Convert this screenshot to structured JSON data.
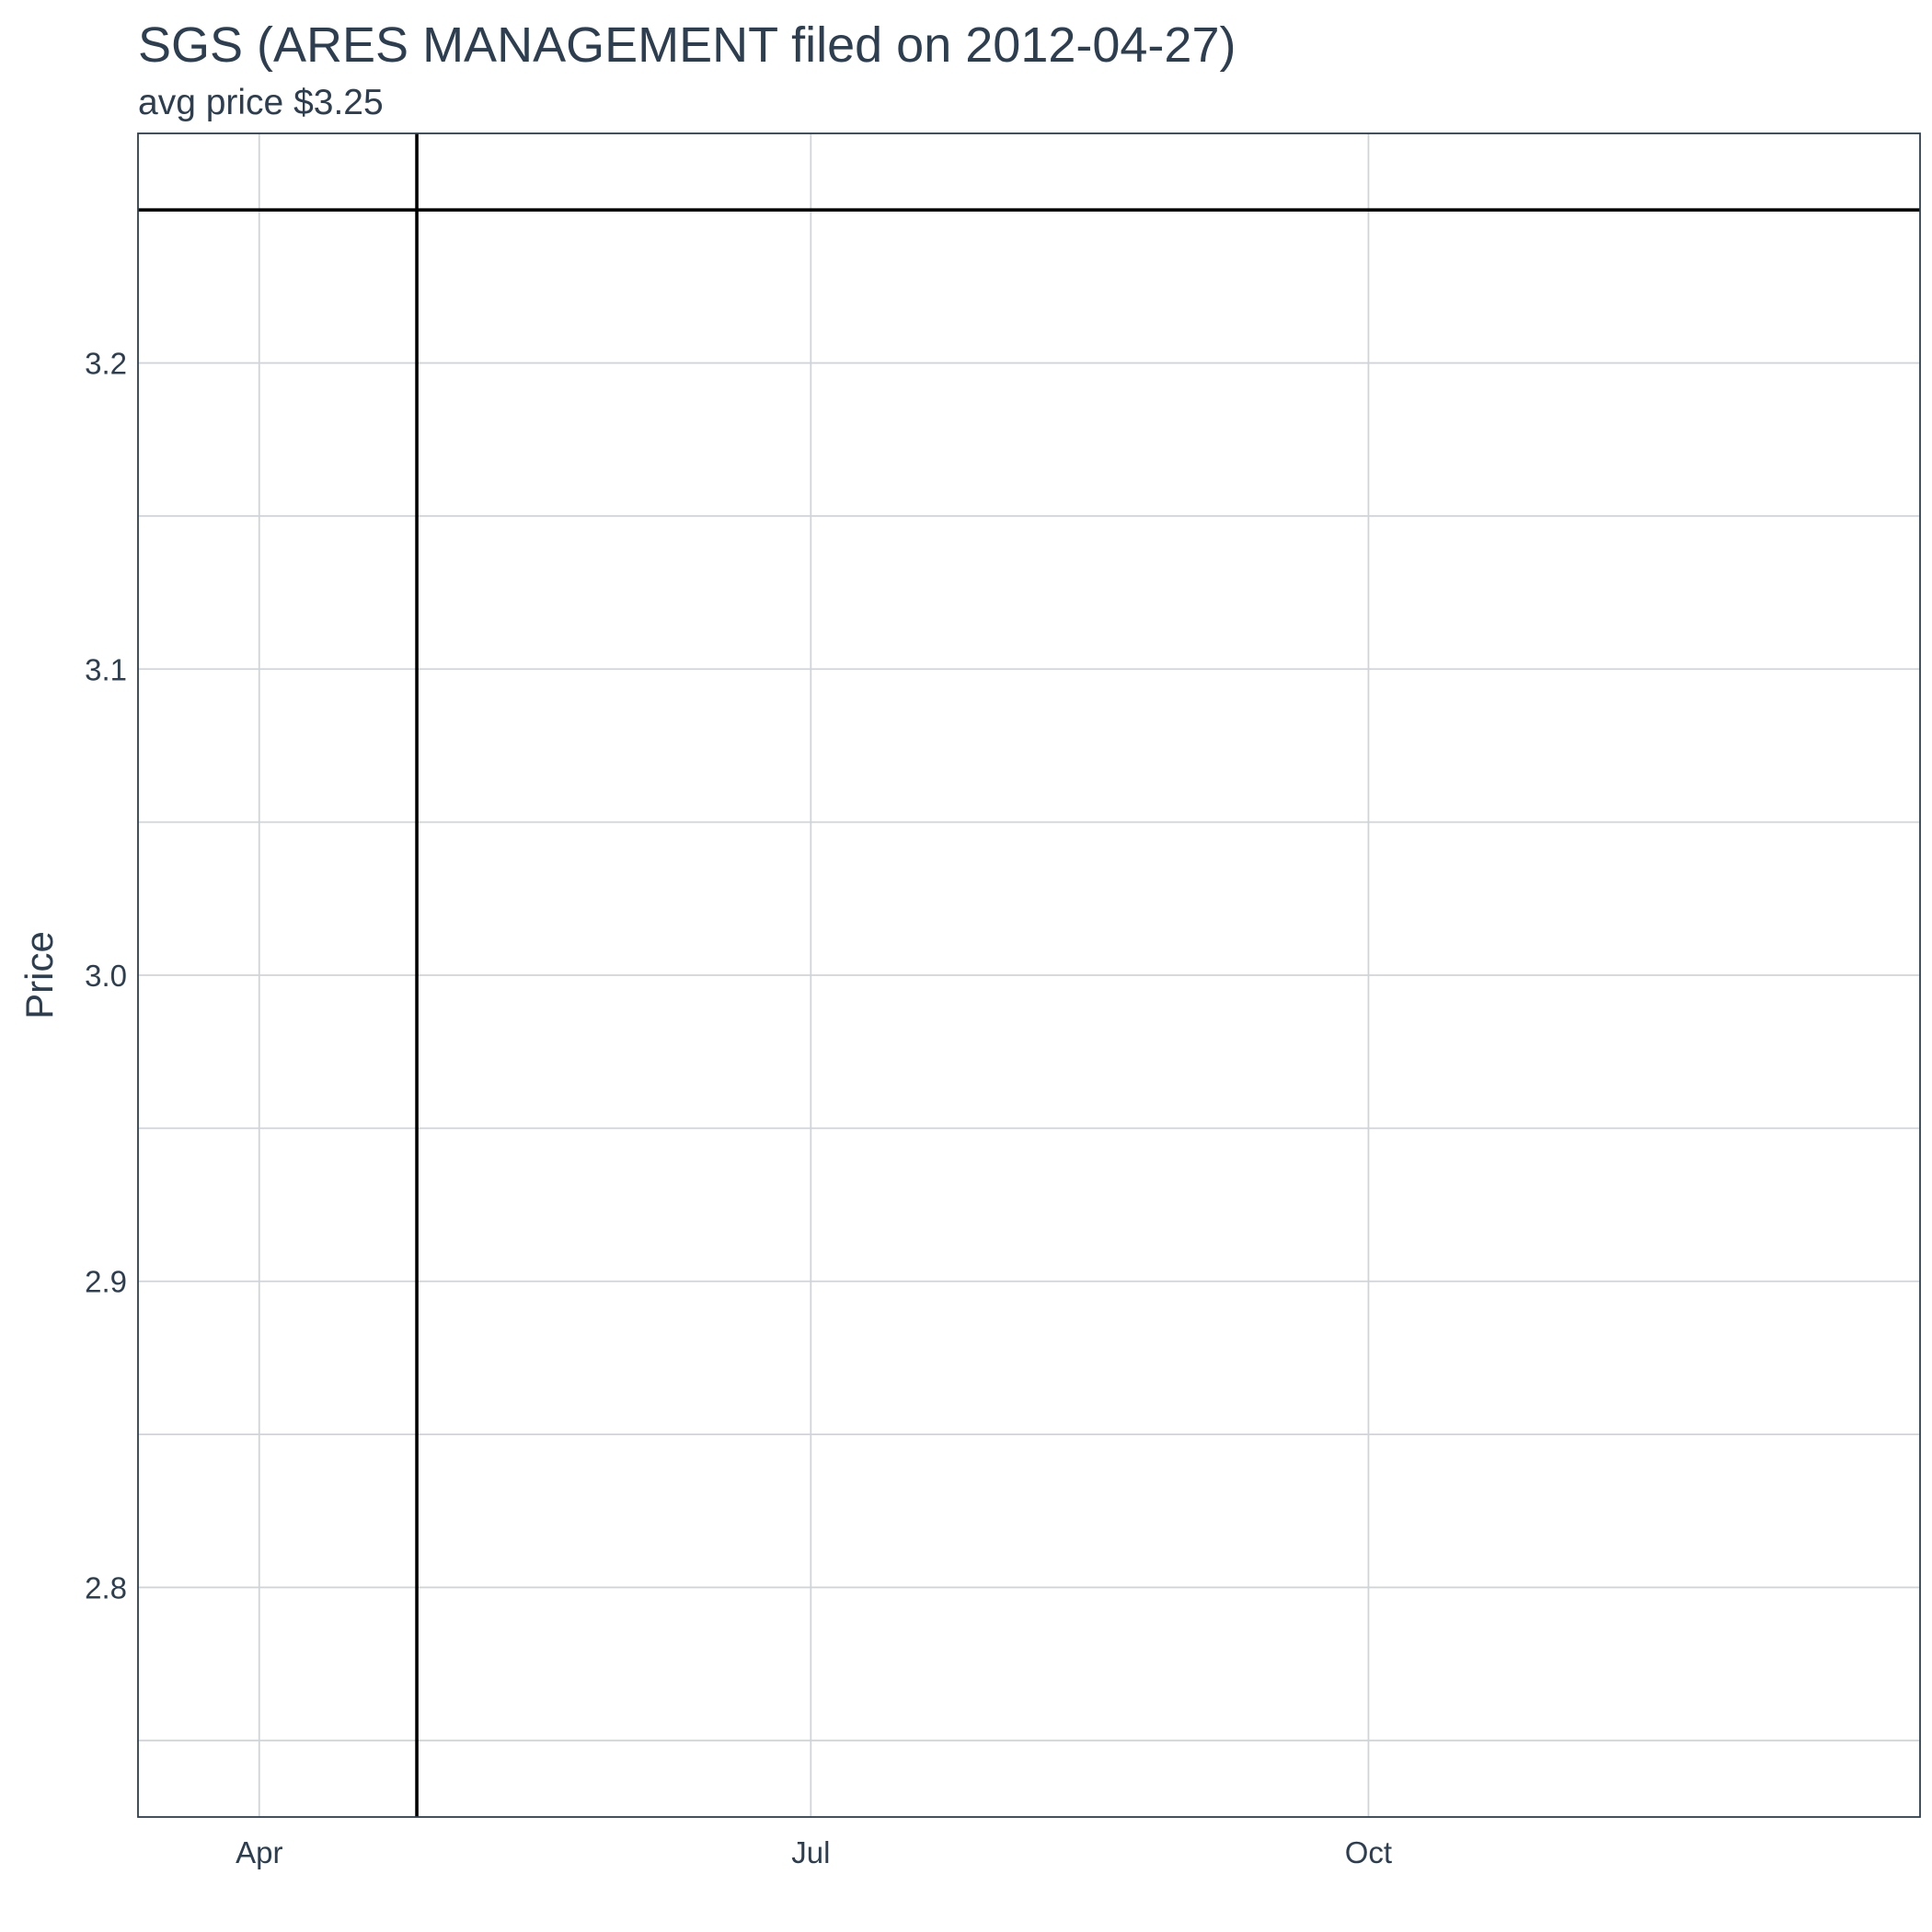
{
  "chart_data": {
    "type": "line",
    "title": "SGS (ARES MANAGEMENT filed on 2012-04-27)",
    "subtitle": "avg price $3.25",
    "xlabel": "",
    "ylabel": "Price",
    "x_axis_type": "date",
    "xlim": [
      "2012-03-12",
      "2012-12-31"
    ],
    "ylim": [
      2.725,
      3.275
    ],
    "x_ticks": [
      {
        "date": "2012-04-01",
        "label": "Apr"
      },
      {
        "date": "2012-07-01",
        "label": "Jul"
      },
      {
        "date": "2012-10-01",
        "label": "Oct"
      }
    ],
    "y_ticks": [
      2.8,
      2.9,
      3.0,
      3.1,
      3.2
    ],
    "y_minor_ticks": [
      2.75,
      2.85,
      2.95,
      3.05,
      3.15,
      3.25
    ],
    "grid": true,
    "reference_lines": [
      {
        "orientation": "horizontal",
        "value": 3.25,
        "color": "#000000"
      },
      {
        "orientation": "vertical",
        "date": "2012-04-27",
        "color": "#000000"
      }
    ],
    "colors": {
      "text": "#2c3e50",
      "grid": "#d0d4d9",
      "panel_border": "#2c3e50",
      "reference": "#000000"
    }
  }
}
